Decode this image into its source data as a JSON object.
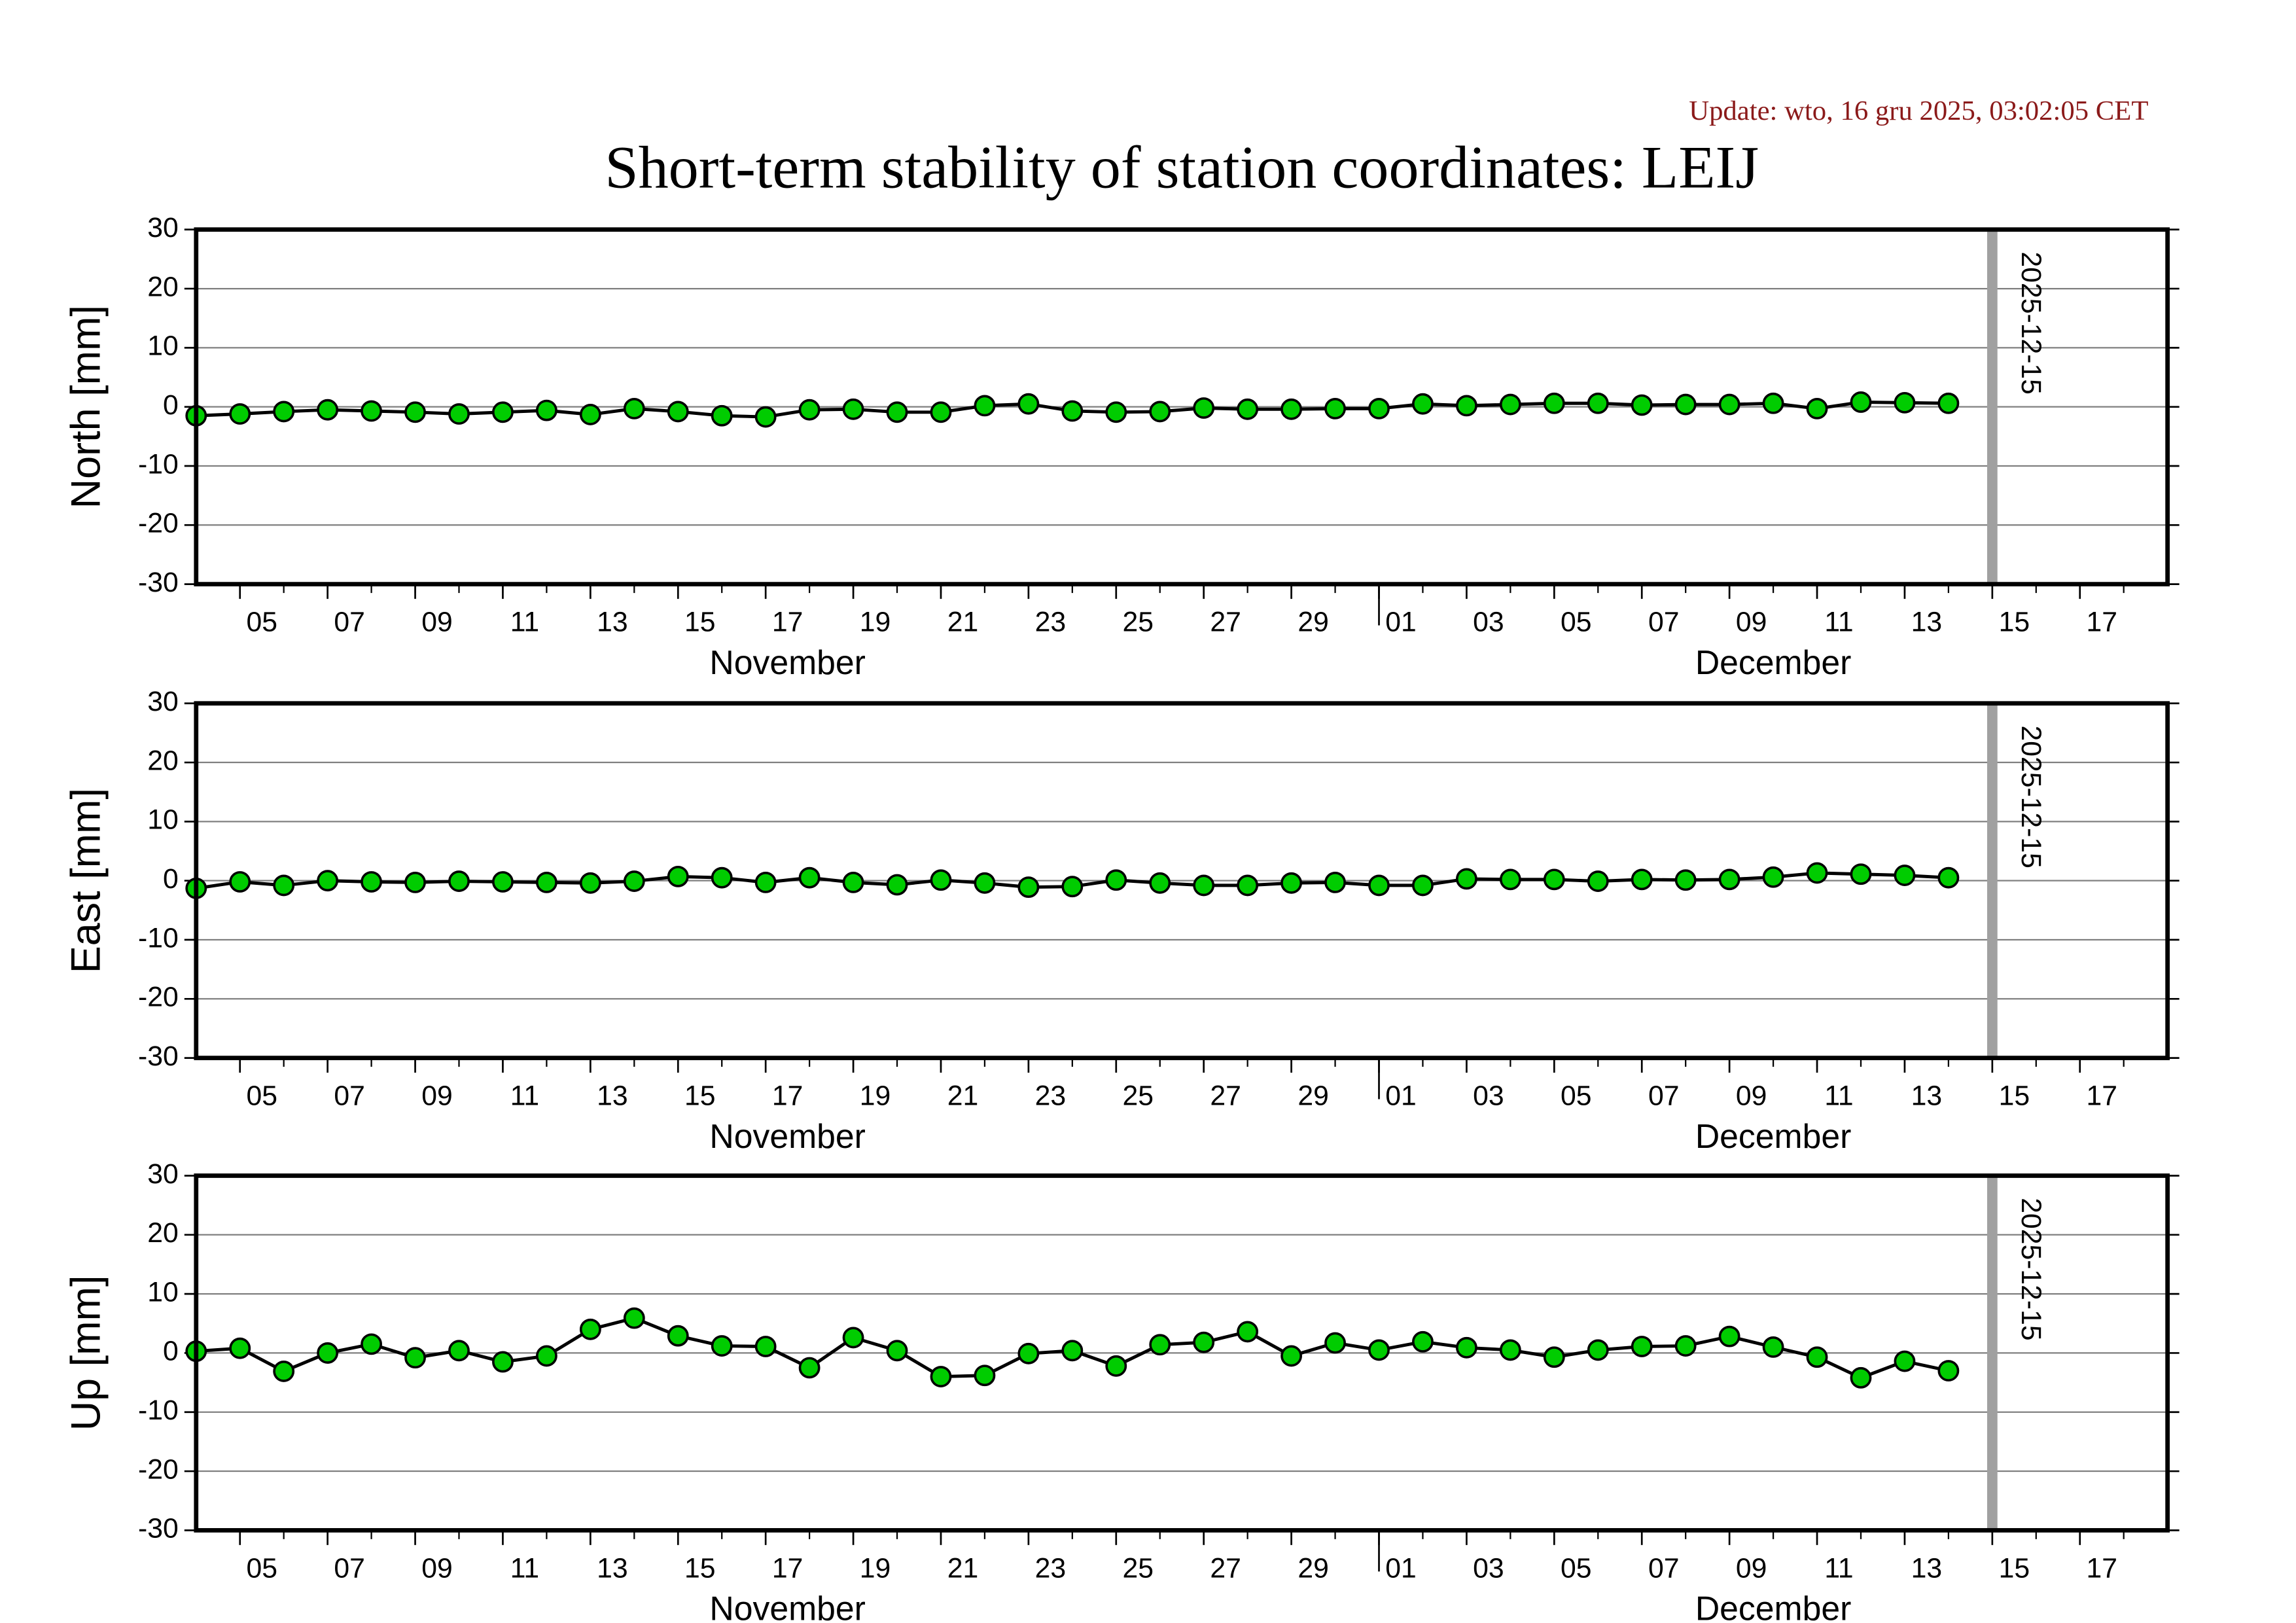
{
  "header": {
    "update": "Update: wto, 16 gru 2025, 03:02:05 CET",
    "title": "Short-term stability of station coordinates: LEIJ"
  },
  "chart_data": [
    {
      "type": "line",
      "ylabel": "North [mm]",
      "x": [
        "2025-11-04",
        "2025-11-05",
        "2025-11-06",
        "2025-11-07",
        "2025-11-08",
        "2025-11-09",
        "2025-11-10",
        "2025-11-11",
        "2025-11-12",
        "2025-11-13",
        "2025-11-14",
        "2025-11-15",
        "2025-11-16",
        "2025-11-17",
        "2025-11-18",
        "2025-11-19",
        "2025-11-20",
        "2025-11-21",
        "2025-11-22",
        "2025-11-23",
        "2025-11-24",
        "2025-11-25",
        "2025-11-26",
        "2025-11-27",
        "2025-11-28",
        "2025-11-29",
        "2025-11-30",
        "2025-12-01",
        "2025-12-02",
        "2025-12-03",
        "2025-12-04",
        "2025-12-05",
        "2025-12-06",
        "2025-12-07",
        "2025-12-08",
        "2025-12-09",
        "2025-12-10",
        "2025-12-11",
        "2025-12-12",
        "2025-12-13",
        "2025-12-14"
      ],
      "series": [
        {
          "color": "#00cc00",
          "line_color": "#000000",
          "values": [
            -1.5,
            -1.2,
            -0.8,
            -0.5,
            -0.7,
            -0.9,
            -1.2,
            -0.9,
            -0.6,
            -1.3,
            -0.3,
            -0.8,
            -1.5,
            -1.7,
            -0.5,
            -0.4,
            -0.9,
            -0.9,
            0.2,
            0.5,
            -0.7,
            -0.9,
            -0.8,
            -0.2,
            -0.4,
            -0.4,
            -0.3,
            -0.3,
            0.5,
            0.2,
            0.4,
            0.6,
            0.6,
            0.3,
            0.4,
            0.4,
            0.6,
            -0.3,
            0.8,
            0.7,
            0.6
          ]
        }
      ],
      "ylim": [
        -30,
        30
      ],
      "yticks": [
        -30,
        -20,
        -10,
        0,
        10,
        20,
        30
      ],
      "grid": true,
      "xlim": [
        "2025-11-04",
        "2025-12-19"
      ],
      "xticks": [
        {
          "value": "2025-11-05",
          "label": "05"
        },
        {
          "value": "2025-11-07",
          "label": "07"
        },
        {
          "value": "2025-11-09",
          "label": "09"
        },
        {
          "value": "2025-11-11",
          "label": "11"
        },
        {
          "value": "2025-11-13",
          "label": "13"
        },
        {
          "value": "2025-11-15",
          "label": "15"
        },
        {
          "value": "2025-11-17",
          "label": "17"
        },
        {
          "value": "2025-11-19",
          "label": "19"
        },
        {
          "value": "2025-11-21",
          "label": "21"
        },
        {
          "value": "2025-11-23",
          "label": "23"
        },
        {
          "value": "2025-11-25",
          "label": "25"
        },
        {
          "value": "2025-11-27",
          "label": "27"
        },
        {
          "value": "2025-11-29",
          "label": "29"
        },
        {
          "value": "2025-12-01",
          "label": "01"
        },
        {
          "value": "2025-12-03",
          "label": "03"
        },
        {
          "value": "2025-12-05",
          "label": "05"
        },
        {
          "value": "2025-12-07",
          "label": "07"
        },
        {
          "value": "2025-12-09",
          "label": "09"
        },
        {
          "value": "2025-12-11",
          "label": "11"
        },
        {
          "value": "2025-12-13",
          "label": "13"
        },
        {
          "value": "2025-12-15",
          "label": "15"
        },
        {
          "value": "2025-12-17",
          "label": "17"
        }
      ],
      "month_labels": [
        {
          "value": "2025-11-01",
          "label": "November"
        },
        {
          "value": "2025-12-01",
          "label": "December"
        }
      ],
      "vline": "2025-12-15"
    },
    {
      "type": "line",
      "ylabel": "East [mm]",
      "x": [
        "2025-11-04",
        "2025-11-05",
        "2025-11-06",
        "2025-11-07",
        "2025-11-08",
        "2025-11-09",
        "2025-11-10",
        "2025-11-11",
        "2025-11-12",
        "2025-11-13",
        "2025-11-14",
        "2025-11-15",
        "2025-11-16",
        "2025-11-17",
        "2025-11-18",
        "2025-11-19",
        "2025-11-20",
        "2025-11-21",
        "2025-11-22",
        "2025-11-23",
        "2025-11-24",
        "2025-11-25",
        "2025-11-26",
        "2025-11-27",
        "2025-11-28",
        "2025-11-29",
        "2025-11-30",
        "2025-12-01",
        "2025-12-02",
        "2025-12-03",
        "2025-12-04",
        "2025-12-05",
        "2025-12-06",
        "2025-12-07",
        "2025-12-08",
        "2025-12-09",
        "2025-12-10",
        "2025-12-11",
        "2025-12-12",
        "2025-12-13",
        "2025-12-14"
      ],
      "series": [
        {
          "color": "#00cc00",
          "line_color": "#000000",
          "values": [
            -1.3,
            -0.2,
            -0.8,
            0,
            -0.2,
            -0.3,
            -0.1,
            -0.2,
            -0.3,
            -0.4,
            -0.1,
            0.7,
            0.5,
            -0.3,
            0.5,
            -0.3,
            -0.7,
            0.1,
            -0.4,
            -1.1,
            -1.0,
            0.1,
            -0.4,
            -0.8,
            -0.8,
            -0.4,
            -0.3,
            -0.8,
            -0.8,
            0.3,
            0.2,
            0.2,
            -0.1,
            0.2,
            0.1,
            0.2,
            0.6,
            1.3,
            1.1,
            0.9,
            0.5
          ]
        }
      ],
      "ylim": [
        -30,
        30
      ],
      "yticks": [
        -30,
        -20,
        -10,
        0,
        10,
        20,
        30
      ],
      "grid": true,
      "xlim": [
        "2025-11-04",
        "2025-12-19"
      ],
      "xticks": [
        {
          "value": "2025-11-05",
          "label": "05"
        },
        {
          "value": "2025-11-07",
          "label": "07"
        },
        {
          "value": "2025-11-09",
          "label": "09"
        },
        {
          "value": "2025-11-11",
          "label": "11"
        },
        {
          "value": "2025-11-13",
          "label": "13"
        },
        {
          "value": "2025-11-15",
          "label": "15"
        },
        {
          "value": "2025-11-17",
          "label": "17"
        },
        {
          "value": "2025-11-19",
          "label": "19"
        },
        {
          "value": "2025-11-21",
          "label": "21"
        },
        {
          "value": "2025-11-23",
          "label": "23"
        },
        {
          "value": "2025-11-25",
          "label": "25"
        },
        {
          "value": "2025-11-27",
          "label": "27"
        },
        {
          "value": "2025-11-29",
          "label": "29"
        },
        {
          "value": "2025-12-01",
          "label": "01"
        },
        {
          "value": "2025-12-03",
          "label": "03"
        },
        {
          "value": "2025-12-05",
          "label": "05"
        },
        {
          "value": "2025-12-07",
          "label": "07"
        },
        {
          "value": "2025-12-09",
          "label": "09"
        },
        {
          "value": "2025-12-11",
          "label": "11"
        },
        {
          "value": "2025-12-13",
          "label": "13"
        },
        {
          "value": "2025-12-15",
          "label": "15"
        },
        {
          "value": "2025-12-17",
          "label": "17"
        }
      ],
      "month_labels": [
        {
          "value": "2025-11-01",
          "label": "November"
        },
        {
          "value": "2025-12-01",
          "label": "December"
        }
      ],
      "vline": "2025-12-15"
    },
    {
      "type": "line",
      "ylabel": "Up [mm]",
      "x": [
        "2025-11-04",
        "2025-11-05",
        "2025-11-06",
        "2025-11-07",
        "2025-11-08",
        "2025-11-09",
        "2025-11-10",
        "2025-11-11",
        "2025-11-12",
        "2025-11-13",
        "2025-11-14",
        "2025-11-15",
        "2025-11-16",
        "2025-11-17",
        "2025-11-18",
        "2025-11-19",
        "2025-11-20",
        "2025-11-21",
        "2025-11-22",
        "2025-11-23",
        "2025-11-24",
        "2025-11-25",
        "2025-11-26",
        "2025-11-27",
        "2025-11-28",
        "2025-11-29",
        "2025-11-30",
        "2025-12-01",
        "2025-12-02",
        "2025-12-03",
        "2025-12-04",
        "2025-12-05",
        "2025-12-06",
        "2025-12-07",
        "2025-12-08",
        "2025-12-09",
        "2025-12-10",
        "2025-12-11",
        "2025-12-12",
        "2025-12-13",
        "2025-12-14"
      ],
      "series": [
        {
          "color": "#00cc00",
          "line_color": "#000000",
          "values": [
            0.3,
            0.8,
            -3.1,
            0,
            1.5,
            -0.8,
            0.4,
            -1.5,
            -0.5,
            4,
            5.9,
            2.9,
            1.2,
            1.1,
            -2.5,
            2.6,
            0.4,
            -4,
            -3.8,
            -0.1,
            0.4,
            -2.2,
            1.4,
            1.8,
            3.6,
            -0.5,
            1.7,
            0.5,
            1.9,
            0.9,
            0.5,
            -0.7,
            0.5,
            1.1,
            1.2,
            2.8,
            1.0,
            -0.7,
            -4.2,
            -1.4,
            -3.0
          ]
        }
      ],
      "ylim": [
        -30,
        30
      ],
      "yticks": [
        -30,
        -20,
        -10,
        0,
        10,
        20,
        30
      ],
      "grid": true,
      "xlim": [
        "2025-11-04",
        "2025-12-19"
      ],
      "xticks": [
        {
          "value": "2025-11-05",
          "label": "05"
        },
        {
          "value": "2025-11-07",
          "label": "07"
        },
        {
          "value": "2025-11-09",
          "label": "09"
        },
        {
          "value": "2025-11-11",
          "label": "11"
        },
        {
          "value": "2025-11-13",
          "label": "13"
        },
        {
          "value": "2025-11-15",
          "label": "15"
        },
        {
          "value": "2025-11-17",
          "label": "17"
        },
        {
          "value": "2025-11-19",
          "label": "19"
        },
        {
          "value": "2025-11-21",
          "label": "21"
        },
        {
          "value": "2025-11-23",
          "label": "23"
        },
        {
          "value": "2025-11-25",
          "label": "25"
        },
        {
          "value": "2025-11-27",
          "label": "27"
        },
        {
          "value": "2025-11-29",
          "label": "29"
        },
        {
          "value": "2025-12-01",
          "label": "01"
        },
        {
          "value": "2025-12-03",
          "label": "03"
        },
        {
          "value": "2025-12-05",
          "label": "05"
        },
        {
          "value": "2025-12-07",
          "label": "07"
        },
        {
          "value": "2025-12-09",
          "label": "09"
        },
        {
          "value": "2025-12-11",
          "label": "11"
        },
        {
          "value": "2025-12-13",
          "label": "13"
        },
        {
          "value": "2025-12-15",
          "label": "15"
        },
        {
          "value": "2025-12-17",
          "label": "17"
        }
      ],
      "month_labels": [
        {
          "value": "2025-11-01",
          "label": "November"
        },
        {
          "value": "2025-12-01",
          "label": "December"
        }
      ],
      "vline": "2025-12-15"
    }
  ]
}
